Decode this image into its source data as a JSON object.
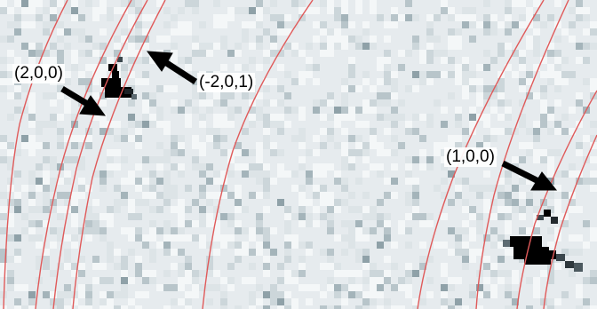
{
  "labels": {
    "peak_2_0_0": "(2,0,0)",
    "peak_minus2_0_1": "(-2,0,1)",
    "peak_1_0_0": "(1,0,0)"
  },
  "colors": {
    "background": "#e6ebee",
    "ring": "#e05a5a",
    "peak": "#000000",
    "arrow": "#000000"
  }
}
